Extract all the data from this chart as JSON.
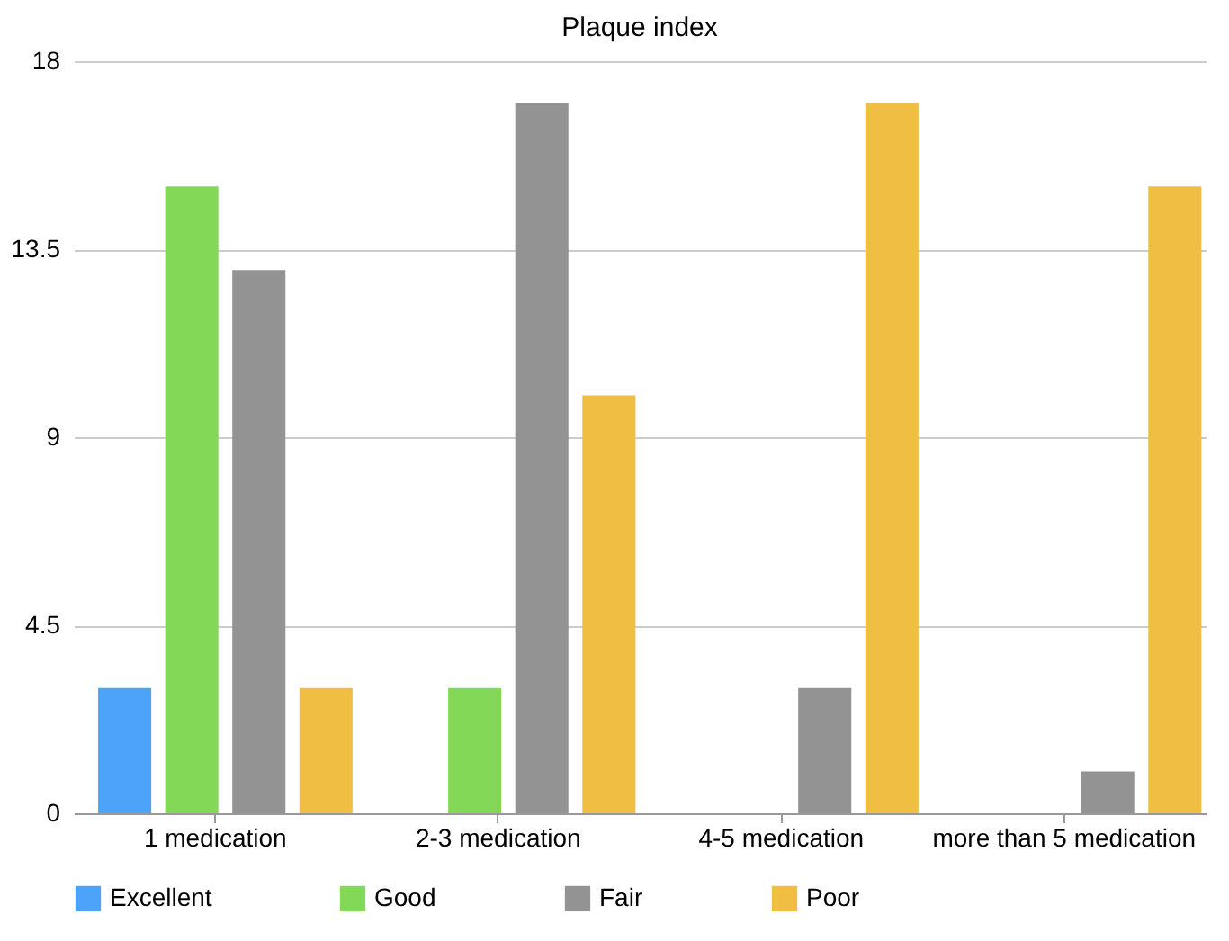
{
  "chart_data": {
    "type": "bar",
    "title": "Plaque index",
    "categories": [
      "1 medication",
      "2-3 medication",
      "4-5 medication",
      "more than 5 medication"
    ],
    "series": [
      {
        "name": "Excellent",
        "color": "#4ca3f7",
        "values": [
          3,
          0,
          0,
          0
        ]
      },
      {
        "name": "Good",
        "color": "#84d857",
        "values": [
          15,
          3,
          0,
          0
        ]
      },
      {
        "name": "Fair",
        "color": "#939393",
        "values": [
          13,
          17,
          3,
          1
        ]
      },
      {
        "name": "Poor",
        "color": "#efbe42",
        "values": [
          3,
          10,
          17,
          15
        ]
      }
    ],
    "ylim": [
      0,
      18
    ],
    "yticks": [
      0,
      4.5,
      9,
      13.5,
      18
    ],
    "grid": "y",
    "legend": "bottom"
  }
}
